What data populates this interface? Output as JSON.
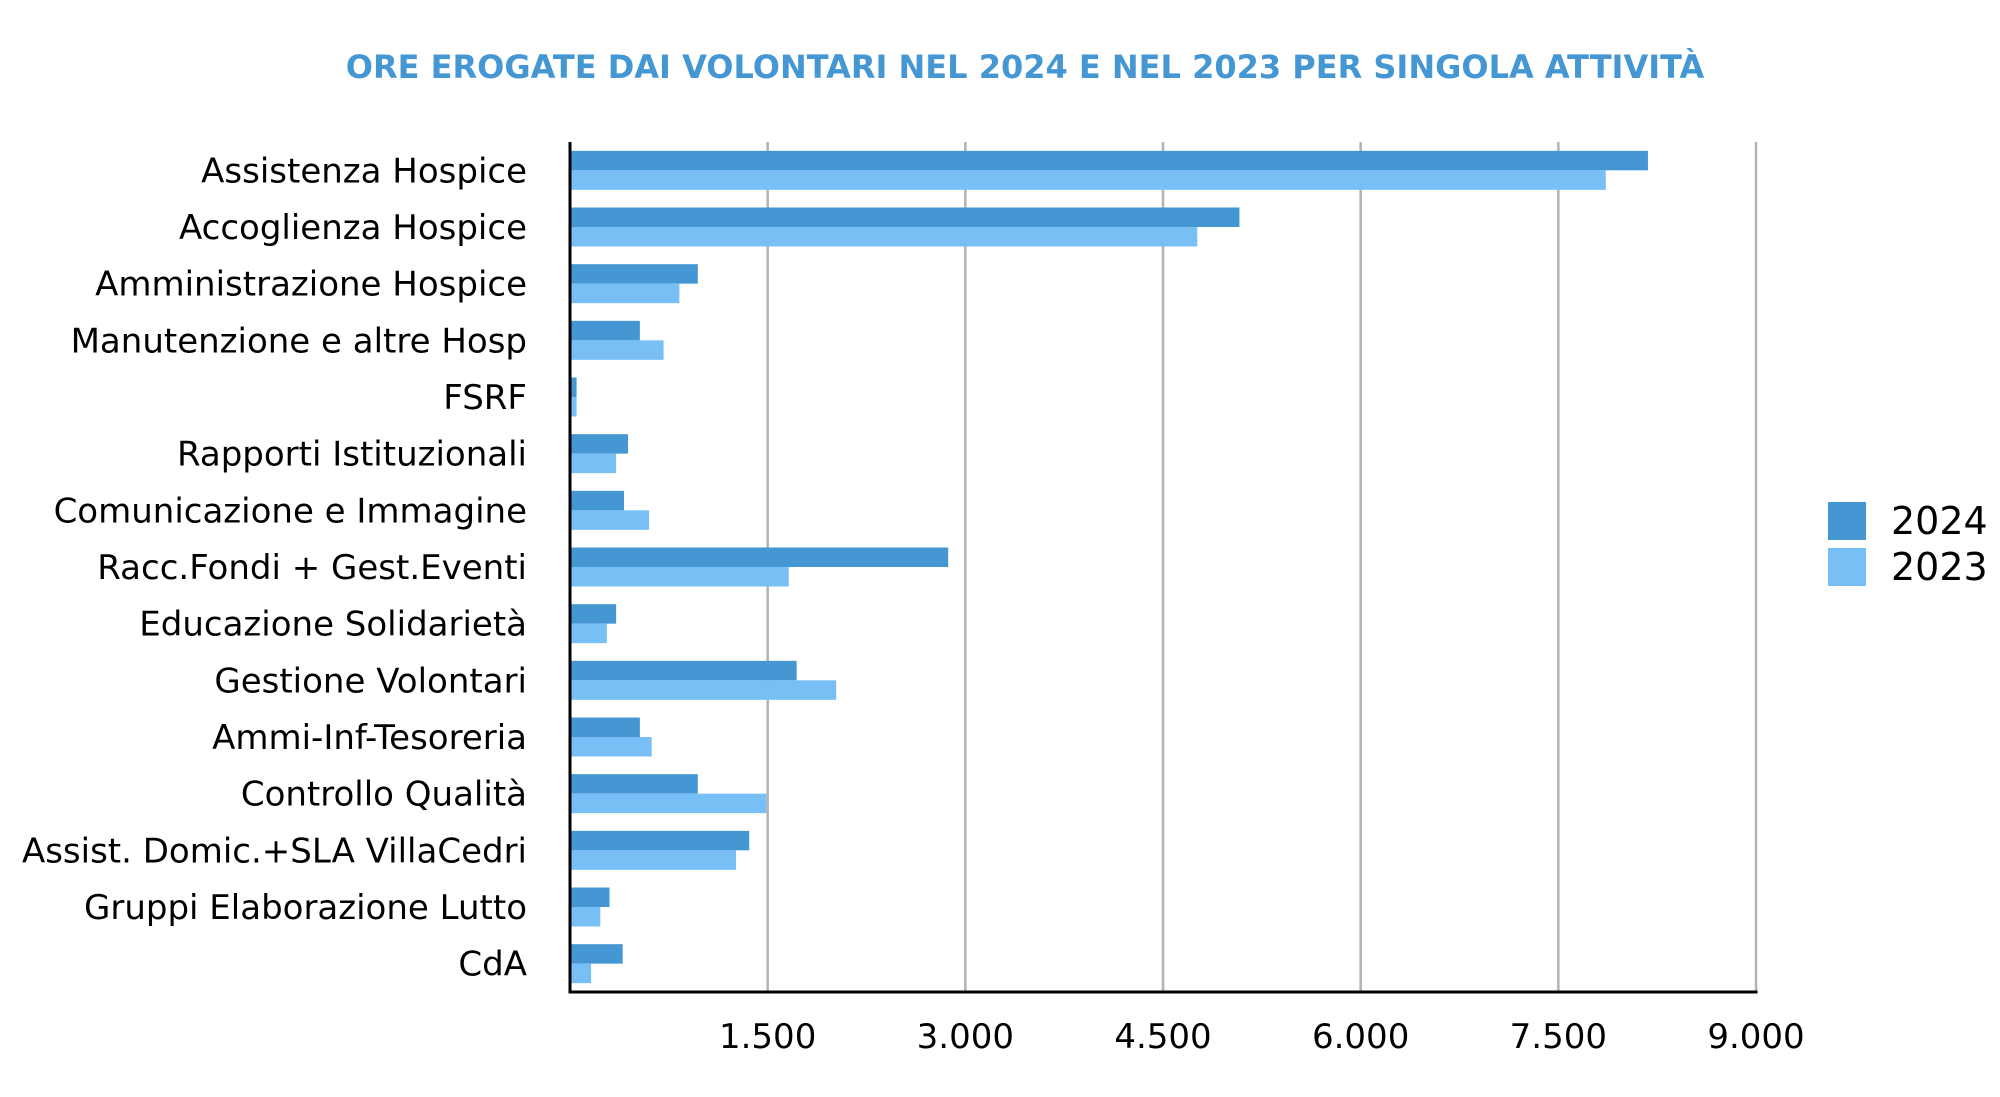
{
  "chart_data": {
    "type": "bar",
    "orientation": "horizontal",
    "title": "ORE EROGATE DAI VOLONTARI NEL 2024 E NEL 2023 PER SINGOLA ATTIVITÀ",
    "xlabel": "",
    "ylabel": "",
    "xlim": [
      0,
      9000
    ],
    "xticks": [
      1500,
      3000,
      4500,
      6000,
      7500,
      9000
    ],
    "xtick_labels": [
      "1.500",
      "3.000",
      "4.500",
      "6.000",
      "7.500",
      "9.000"
    ],
    "grid": "vertical",
    "legend_position": "right",
    "categories": [
      "Assistenza Hospice",
      "Accoglienza Hospice",
      "Amministrazione Hospice",
      "Manutenzione e altre Hosp",
      "FSRF",
      "Rapporti Istituzionali",
      "Comunicazione e Immagine",
      "Racc.Fondi + Gest.Eventi",
      "Educazione Solidarietà",
      "Gestione Volontari",
      "Ammi-Inf-Tesoreria",
      "Controllo Qualità",
      "Assist. Domic.+SLA VillaCedri",
      "Gruppi Elaborazione Lutto",
      "CdA"
    ],
    "series": [
      {
        "name": "2024",
        "color": "#4597d3",
        "values": [
          8180,
          5080,
          970,
          530,
          50,
          440,
          410,
          2870,
          350,
          1720,
          530,
          970,
          1360,
          300,
          400
        ]
      },
      {
        "name": "2023",
        "color": "#78bff6",
        "values": [
          7860,
          4760,
          830,
          710,
          50,
          350,
          600,
          1660,
          280,
          2020,
          620,
          1490,
          1260,
          230,
          160
        ]
      }
    ]
  }
}
